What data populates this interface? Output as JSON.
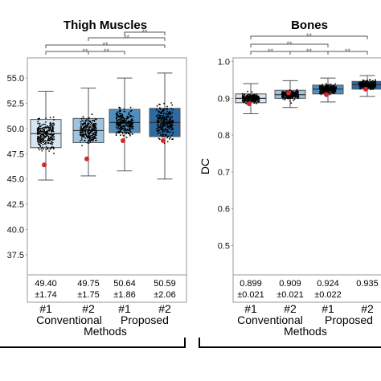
{
  "colors": {
    "box_fills": [
      "#d6e6f4",
      "#9fc4e0",
      "#4f8fc0",
      "#2b6aa3"
    ],
    "box_edge": "#555555",
    "points": "#000000",
    "marker": "#d62728",
    "bracket": "#555555"
  },
  "chart_data": [
    {
      "type": "box",
      "title": "Thigh Muscles",
      "ylabel": "",
      "ylim": [
        35.5,
        57
      ],
      "yticks": [
        "37.5",
        "40.0",
        "42.5",
        "45.0",
        "47.5",
        "50.0",
        "52.5",
        "55.0"
      ],
      "categories": [
        "#1",
        "#2",
        "#1",
        "#2"
      ],
      "series": [
        {
          "whisker_low": 44.9,
          "q1": 48.1,
          "median": 49.5,
          "q3": 50.9,
          "whisker_high": 53.7,
          "marker": 46.4
        },
        {
          "whisker_low": 45.3,
          "q1": 48.6,
          "median": 49.8,
          "q3": 51.0,
          "whisker_high": 54.0,
          "marker": 47.0
        },
        {
          "whisker_low": 45.8,
          "q1": 49.6,
          "median": 50.6,
          "q3": 51.9,
          "whisker_high": 55.0,
          "marker": 48.8
        },
        {
          "whisker_low": 45.0,
          "q1": 49.2,
          "median": 50.6,
          "q3": 52.0,
          "whisker_high": 55.5,
          "marker": 48.8
        }
      ],
      "stats": [
        {
          "mean": "49.40",
          "sd": "±1.74"
        },
        {
          "mean": "49.75",
          "sd": "±1.75"
        },
        {
          "mean": "50.64",
          "sd": "±1.86"
        },
        {
          "mean": "50.59",
          "sd": "±2.06"
        }
      ],
      "significance": [
        "**",
        "**",
        "**",
        "**",
        "**"
      ]
    },
    {
      "type": "box",
      "title": "Bones",
      "ylabel": "DC",
      "ylim": [
        0.42,
        1.01
      ],
      "yticks": [
        "0.5",
        "0.6",
        "0.7",
        "0.8",
        "0.9",
        "1.0"
      ],
      "categories": [
        "#1",
        "#2",
        "#1",
        "#2"
      ],
      "series": [
        {
          "whisker_low": 0.858,
          "q1": 0.888,
          "median": 0.9,
          "q3": 0.912,
          "whisker_high": 0.94,
          "marker": 0.885
        },
        {
          "whisker_low": 0.875,
          "q1": 0.9,
          "median": 0.91,
          "q3": 0.922,
          "whisker_high": 0.948,
          "marker": 0.915
        },
        {
          "whisker_low": 0.89,
          "q1": 0.912,
          "median": 0.925,
          "q3": 0.936,
          "whisker_high": 0.955,
          "marker": 0.91
        },
        {
          "whisker_low": 0.905,
          "q1": 0.925,
          "median": 0.937,
          "q3": 0.946,
          "whisker_high": 0.962,
          "marker": 0.925
        }
      ],
      "stats": [
        {
          "mean": "0.899",
          "sd": "±0.021"
        },
        {
          "mean": "0.909",
          "sd": "±0.021"
        },
        {
          "mean": "0.924",
          "sd": "±0.022"
        },
        {
          "mean": "0.935",
          "sd": ""
        }
      ],
      "significance": [
        "**",
        "**",
        "**",
        "**",
        "**"
      ]
    }
  ],
  "groups": {
    "conventional": "Conventional",
    "proposed": "Proposed"
  },
  "xlabel": "Methods"
}
